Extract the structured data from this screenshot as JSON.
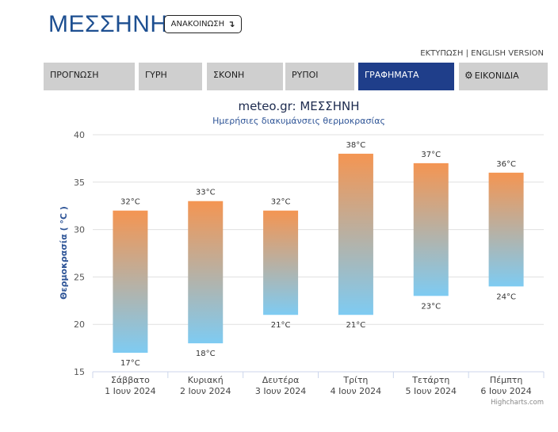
{
  "header": {
    "title": "ΜΕΣΣΗΝΗ",
    "announce_label": "ΑΝΑΚΟΙΝΩΣΗ",
    "announce_icon": "↴",
    "print_link": "ΕΚΤΥΠΩΣΗ",
    "separator": " | ",
    "english_link": "ENGLISH VERSION"
  },
  "tabs": [
    {
      "label": "ΠΡΟΓΝΩΣΗ",
      "active": false
    },
    {
      "label": "ΓΥΡΗ",
      "active": false
    },
    {
      "label": "ΣΚΟΝΗ",
      "active": false
    },
    {
      "label": "ΡΥΠΟΙ",
      "active": false
    },
    {
      "label": "ΓΡΑΦΗΜΑΤΑ",
      "active": true
    },
    {
      "label": "ΕΙΚΟΝΙΔΙΑ",
      "active": false,
      "icon": "gear-icon"
    }
  ],
  "chart_data": {
    "type": "columnrange",
    "title": "meteo.gr: ΜΕΣΣΗΝΗ",
    "subtitle": "Ημερήσιες διακυμάνσεις θερμοκρασίας",
    "ylabel": "Θερμοκρασία ( °C )",
    "ylim": [
      15,
      40
    ],
    "yticks": [
      "15",
      "20",
      "25",
      "30",
      "35",
      "40"
    ],
    "categories": [
      [
        "Σάββατο",
        "1 Ιουν 2024"
      ],
      [
        "Κυριακή",
        "2 Ιουν 2024"
      ],
      [
        "Δευτέρα",
        "3 Ιουν 2024"
      ],
      [
        "Τρίτη",
        "4 Ιουν 2024"
      ],
      [
        "Τετάρτη",
        "5 Ιουν 2024"
      ],
      [
        "Πέμπτη",
        "6 Ιουν 2024"
      ]
    ],
    "low": [
      17,
      18,
      21,
      21,
      23,
      24
    ],
    "high": [
      32,
      33,
      32,
      38,
      37,
      36
    ],
    "unit": "°C",
    "credits": "Highcharts.com",
    "colors": {
      "top": "#f49552",
      "bottom": "#7ecbf2",
      "grid": "#e0e0e0",
      "title": "#1d2b4f",
      "subtitle": "#2f5597",
      "ylabel": "#2f5597"
    }
  }
}
